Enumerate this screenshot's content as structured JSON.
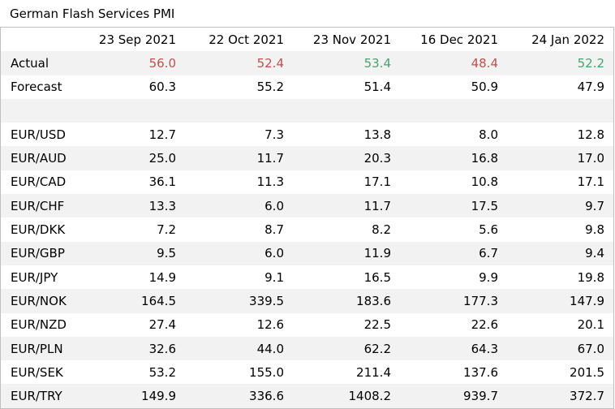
{
  "title": "German Flash Services PMI",
  "colors": {
    "negative": "#c0504d",
    "positive": "#4e9f6e",
    "stripe": "#f2f2f2"
  },
  "columns": [
    "",
    "23 Sep 2021",
    "22 Oct 2021",
    "23 Nov 2021",
    "16 Dec 2021",
    "24 Jan 2022"
  ],
  "actual": {
    "label": "Actual",
    "values": [
      "56.0",
      "52.4",
      "53.4",
      "48.4",
      "52.2"
    ],
    "status": [
      "neg",
      "neg",
      "pos",
      "neg",
      "pos"
    ]
  },
  "forecast": {
    "label": "Forecast",
    "values": [
      "60.3",
      "55.2",
      "51.4",
      "50.9",
      "47.9"
    ]
  },
  "pairs": [
    {
      "label": "EUR/USD",
      "values": [
        "12.7",
        "7.3",
        "13.8",
        "8.0",
        "12.8"
      ]
    },
    {
      "label": "EUR/AUD",
      "values": [
        "25.0",
        "11.7",
        "20.3",
        "16.8",
        "17.0"
      ]
    },
    {
      "label": "EUR/CAD",
      "values": [
        "36.1",
        "11.3",
        "17.1",
        "10.8",
        "17.1"
      ]
    },
    {
      "label": "EUR/CHF",
      "values": [
        "13.3",
        "6.0",
        "11.7",
        "17.5",
        "9.7"
      ]
    },
    {
      "label": "EUR/DKK",
      "values": [
        "7.2",
        "8.7",
        "8.2",
        "5.6",
        "9.8"
      ]
    },
    {
      "label": "EUR/GBP",
      "values": [
        "9.5",
        "6.0",
        "11.9",
        "6.7",
        "9.4"
      ]
    },
    {
      "label": "EUR/JPY",
      "values": [
        "14.9",
        "9.1",
        "16.5",
        "9.9",
        "19.8"
      ]
    },
    {
      "label": "EUR/NOK",
      "values": [
        "164.5",
        "339.5",
        "183.6",
        "177.3",
        "147.9"
      ]
    },
    {
      "label": "EUR/NZD",
      "values": [
        "27.4",
        "12.6",
        "22.5",
        "22.6",
        "20.1"
      ]
    },
    {
      "label": "EUR/PLN",
      "values": [
        "32.6",
        "44.0",
        "62.2",
        "64.3",
        "67.0"
      ]
    },
    {
      "label": "EUR/SEK",
      "values": [
        "53.2",
        "155.0",
        "211.4",
        "137.6",
        "201.5"
      ]
    },
    {
      "label": "EUR/TRY",
      "values": [
        "149.9",
        "336.6",
        "1408.2",
        "939.7",
        "372.7"
      ]
    }
  ]
}
